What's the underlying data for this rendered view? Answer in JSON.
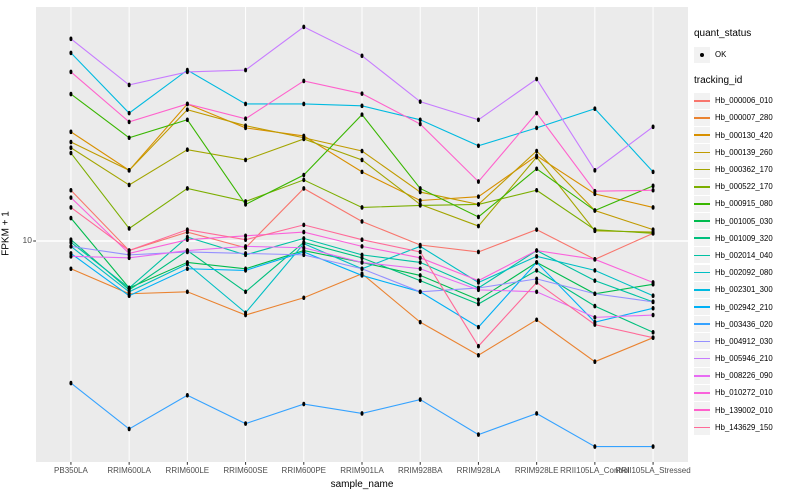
{
  "chart_data": {
    "type": "line",
    "title": "",
    "xlabel": "sample_name",
    "ylabel": "FPKM + 1",
    "y_scale": "log10",
    "ylim": [
      1.8,
      59
    ],
    "y_ticks": [
      10
    ],
    "y_tick_labels": [
      "10"
    ],
    "grid": "on",
    "legend_position": "right",
    "categories": [
      "PB350LA",
      "RRIM600LA",
      "RRIM600LE",
      "RRIM600SE",
      "RRIM600PE",
      "RRIM901LA",
      "RRIM928BA",
      "RRIM928LA",
      "RRIM928LE",
      "RRII105LA_Control",
      "RRII105LA_Stressed"
    ],
    "legend": {
      "quant_status_title": "quant_status",
      "quant_status_items": [
        "OK"
      ],
      "tracking_id_title": "tracking_id"
    },
    "style": {
      "panel_bg": "#EBEBEB",
      "grid_color": "#FFFFFF",
      "legend_key_bg": "#F2F2F2",
      "tick_text": "#4D4D4D",
      "point_color": "#000000"
    },
    "series": [
      {
        "name": "Hb_000006_010",
        "color": "#F8766D",
        "values": [
          14.7,
          9.3,
          10.7,
          9.5,
          14.9,
          11.6,
          9.7,
          9.2,
          10.9,
          8.7,
          10.6
        ]
      },
      {
        "name": "Hb_000007_280",
        "color": "#EA8331",
        "values": [
          8.1,
          6.7,
          6.8,
          5.7,
          6.5,
          7.8,
          5.4,
          4.2,
          5.5,
          4.0,
          4.8
        ]
      },
      {
        "name": "Hb_000130_420",
        "color": "#D89000",
        "values": [
          22.9,
          17.1,
          28.3,
          23.6,
          22.2,
          16.9,
          13.6,
          14.0,
          19.1,
          14.3,
          12.9
        ]
      },
      {
        "name": "Hb_000139_260",
        "color": "#C09B00",
        "values": [
          21.2,
          17.1,
          27.1,
          24.0,
          21.9,
          19.8,
          14.5,
          13.2,
          19.8,
          12.6,
          10.9
        ]
      },
      {
        "name": "Hb_000362_170",
        "color": "#A3A500",
        "values": [
          20.3,
          15.3,
          20.0,
          18.5,
          21.7,
          18.5,
          13.2,
          11.2,
          18.9,
          10.8,
          10.7
        ]
      },
      {
        "name": "Hb_000522_170",
        "color": "#7CAE00",
        "values": [
          19.5,
          11.0,
          14.9,
          13.5,
          15.9,
          12.9,
          13.1,
          13.2,
          14.7,
          10.9,
          10.6
        ]
      },
      {
        "name": "Hb_000915_080",
        "color": "#39B600",
        "values": [
          30.5,
          21.9,
          25.1,
          13.2,
          16.5,
          26.1,
          14.9,
          12.0,
          17.3,
          12.6,
          15.2
        ]
      },
      {
        "name": "Hb_001005_030",
        "color": "#00BB4E",
        "values": [
          11.9,
          7.0,
          8.5,
          8.1,
          9.3,
          8.5,
          7.7,
          6.4,
          8.5,
          6.7,
          7.2
        ]
      },
      {
        "name": "Hb_001009_320",
        "color": "#00BF7D",
        "values": [
          10.1,
          6.9,
          9.3,
          6.8,
          9.9,
          8.8,
          7.4,
          6.2,
          8.0,
          6.1,
          5.0
        ]
      },
      {
        "name": "Hb_002014_040",
        "color": "#00C1A3",
        "values": [
          9.9,
          7.0,
          10.3,
          9.0,
          10.2,
          9.0,
          8.5,
          7.0,
          9.3,
          7.4,
          6.3
        ]
      },
      {
        "name": "Hb_002092_080",
        "color": "#00BFC4",
        "values": [
          9.6,
          6.8,
          8.4,
          5.8,
          9.8,
          8.1,
          9.6,
          7.3,
          8.9,
          8.0,
          6.6
        ]
      },
      {
        "name": "Hb_002301_300",
        "color": "#00BAE0",
        "values": [
          41.7,
          26.4,
          36.6,
          28.3,
          28.3,
          27.9,
          25.1,
          20.6,
          23.6,
          27.3,
          16.9
        ]
      },
      {
        "name": "Hb_002942_210",
        "color": "#00B0F6",
        "values": [
          9.1,
          6.6,
          8.1,
          8.0,
          9.2,
          7.7,
          6.8,
          5.2,
          8.5,
          5.4,
          6.0
        ]
      },
      {
        "name": "Hb_003436_020",
        "color": "#35A2FF",
        "values": [
          3.4,
          2.4,
          3.1,
          2.5,
          2.9,
          2.7,
          3.0,
          2.3,
          2.7,
          2.1,
          2.1
        ]
      },
      {
        "name": "Hb_004912_030",
        "color": "#9590FF",
        "values": [
          9.6,
          9.0,
          9.2,
          9.1,
          9.0,
          8.1,
          6.8,
          7.0,
          7.5,
          6.7,
          6.3
        ]
      },
      {
        "name": "Hb_005946_210",
        "color": "#C77CFF",
        "values": [
          46.4,
          32.7,
          36.1,
          36.6,
          50.8,
          40.8,
          28.8,
          25.1,
          34.2,
          17.1,
          23.8
        ]
      },
      {
        "name": "Hb_008226_090",
        "color": "#E76BF3",
        "values": [
          8.9,
          8.8,
          9.3,
          9.6,
          9.5,
          8.5,
          8.1,
          6.9,
          6.8,
          5.6,
          5.7
        ]
      },
      {
        "name": "Hb_010272_010",
        "color": "#FA62DB",
        "values": [
          13.9,
          9.1,
          10.1,
          10.4,
          10.7,
          9.6,
          8.8,
          7.4,
          9.3,
          8.7,
          7.3
        ]
      },
      {
        "name": "Hb_139002_010",
        "color": "#FF61CC",
        "values": [
          36.1,
          24.7,
          28.3,
          25.3,
          33.7,
          30.6,
          24.3,
          15.7,
          26.4,
          14.6,
          14.7
        ]
      },
      {
        "name": "Hb_143629_150",
        "color": "#FF6A98",
        "values": [
          12.9,
          9.3,
          10.9,
          10.1,
          11.3,
          10.1,
          9.2,
          4.5,
          7.3,
          5.3,
          4.8
        ]
      }
    ]
  }
}
